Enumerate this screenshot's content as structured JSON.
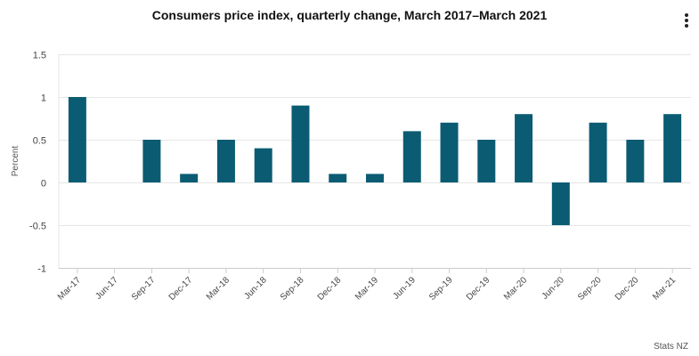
{
  "chart_data": {
    "type": "bar",
    "title": "Consumers price index, quarterly change, March 2017–March 2021",
    "xlabel": "",
    "ylabel": "Percent",
    "ylim": [
      -1,
      1.5
    ],
    "yticks": [
      1.5,
      1,
      0.5,
      0,
      -0.5,
      -1
    ],
    "ytick_labels": [
      "1.5",
      "1",
      "0.5",
      "0",
      "-0.5",
      "-1"
    ],
    "grid": true,
    "categories": [
      "Mar-17",
      "Jun-17",
      "Sep-17",
      "Dec-17",
      "Mar-18",
      "Jun-18",
      "Sep-18",
      "Dec-18",
      "Mar-19",
      "Jun-19",
      "Sep-19",
      "Dec-19",
      "Mar-20",
      "Jun-20",
      "Sep-20",
      "Dec-20",
      "Mar-21"
    ],
    "values": [
      1.0,
      0.0,
      0.5,
      0.1,
      0.5,
      0.4,
      0.9,
      0.1,
      0.1,
      0.6,
      0.7,
      0.5,
      0.8,
      -0.5,
      0.7,
      0.5,
      0.8
    ],
    "bar_color": "#0b5c73",
    "grid_color": "#e6e6e6",
    "axis_color": "#cccccc"
  },
  "menu": {
    "icon": "more-vertical-icon"
  },
  "credit": "Stats NZ"
}
